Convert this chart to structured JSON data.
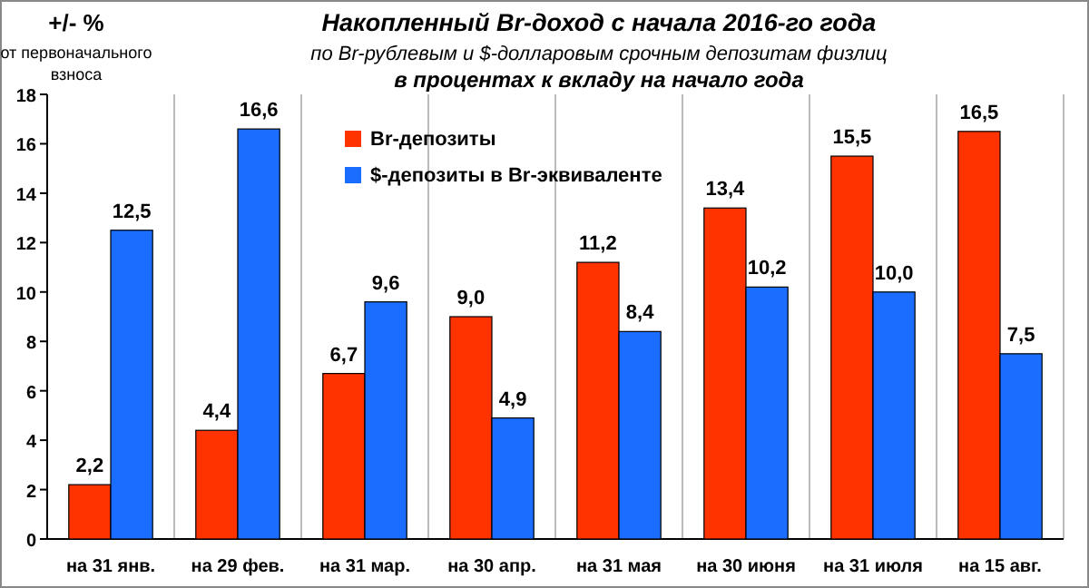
{
  "chart_data": {
    "type": "bar",
    "title": "Накопленный  Br-доход с начала 2016-го года",
    "subtitle": "по Br-рублевым и $-долларовым срочным депозитам физлиц\nв процентах к вкладу на начало года",
    "ylabel": "+/- %",
    "annotations": [
      "от первоначального взноса"
    ],
    "categories": [
      "на 31 янв.",
      "на 29 фев.",
      "на 31 мар.",
      "на 30 апр.",
      "на 31 мая",
      "на 30 июня",
      "на 31 июля",
      "на 15 авг."
    ],
    "series": [
      {
        "name": "Br-депозиты",
        "color": "#ff3300",
        "values": [
          2.2,
          4.4,
          6.7,
          9.0,
          11.2,
          13.4,
          15.5,
          16.5
        ],
        "value_labels": [
          "2,2",
          "4,4",
          "6,7",
          "9,0",
          "11,2",
          "13,4",
          "15,5",
          "16,5"
        ]
      },
      {
        "name": "$-депозиты в Br-эквиваленте",
        "color": "#1a6dff",
        "values": [
          12.5,
          16.6,
          9.6,
          4.9,
          8.4,
          10.2,
          10.0,
          7.5
        ],
        "value_labels": [
          "12,5",
          "16,6",
          "9,6",
          "4,9",
          "8,4",
          "10,2",
          "10,0",
          "7,5"
        ]
      }
    ],
    "ylim": [
      0,
      18
    ],
    "yticks": [
      0,
      2,
      4,
      6,
      8,
      10,
      12,
      14,
      16,
      18
    ],
    "grid": "x",
    "legend": "top left"
  }
}
